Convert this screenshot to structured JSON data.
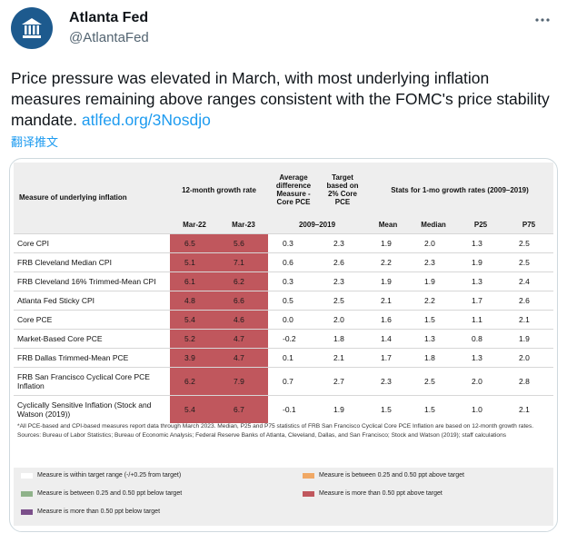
{
  "author": {
    "name": "Atlanta Fed",
    "handle": "@AtlantaFed"
  },
  "tweet": {
    "text": "Price pressure was elevated in March, with most underlying inflation measures remaining above ranges consistent with the FOMC's price stability mandate.",
    "link": "atlfed.org/3Nosdjo",
    "translate": "翻译推文"
  },
  "icons": {
    "avatar": "atlanta-fed-logo-icon",
    "more": "more-options-icon"
  },
  "table": {
    "headers": {
      "measure": "Measure of underlying inflation",
      "growth12": "12-month growth rate",
      "avg_diff": "Average difference Measure - Core PCE",
      "target": "Target based on 2% Core PCE",
      "stats": "Stats for 1-mo growth rates (2009–2019)"
    },
    "subheaders": {
      "mar22": "Mar-22",
      "mar23": "Mar-23",
      "period": "2009–2019",
      "mean": "Mean",
      "median": "Median",
      "p25": "P25",
      "p75": "P75"
    },
    "rows": [
      {
        "measure": "Core CPI",
        "mar22": "6.5",
        "mar23": "5.6",
        "avg_diff": "0.3",
        "target": "2.3",
        "mean": "1.9",
        "median": "2.0",
        "p25": "1.3",
        "p75": "2.5"
      },
      {
        "measure": "FRB Cleveland Median CPI",
        "mar22": "5.1",
        "mar23": "7.1",
        "avg_diff": "0.6",
        "target": "2.6",
        "mean": "2.2",
        "median": "2.3",
        "p25": "1.9",
        "p75": "2.5"
      },
      {
        "measure": "FRB Cleveland 16% Trimmed-Mean CPI",
        "mar22": "6.1",
        "mar23": "6.2",
        "avg_diff": "0.3",
        "target": "2.3",
        "mean": "1.9",
        "median": "1.9",
        "p25": "1.3",
        "p75": "2.4"
      },
      {
        "measure": "Atlanta Fed Sticky CPI",
        "mar22": "4.8",
        "mar23": "6.6",
        "avg_diff": "0.5",
        "target": "2.5",
        "mean": "2.1",
        "median": "2.2",
        "p25": "1.7",
        "p75": "2.6"
      },
      {
        "measure": "Core PCE",
        "mar22": "5.4",
        "mar23": "4.6",
        "avg_diff": "0.0",
        "target": "2.0",
        "mean": "1.6",
        "median": "1.5",
        "p25": "1.1",
        "p75": "2.1"
      },
      {
        "measure": "Market-Based Core PCE",
        "mar22": "5.2",
        "mar23": "4.7",
        "avg_diff": "-0.2",
        "target": "1.8",
        "mean": "1.4",
        "median": "1.3",
        "p25": "0.8",
        "p75": "1.9"
      },
      {
        "measure": "FRB Dallas Trimmed-Mean PCE",
        "mar22": "3.9",
        "mar23": "4.7",
        "avg_diff": "0.1",
        "target": "2.1",
        "mean": "1.7",
        "median": "1.8",
        "p25": "1.3",
        "p75": "2.0"
      },
      {
        "measure": "FRB San Francisco Cyclical Core PCE Inflation",
        "mar22": "6.2",
        "mar23": "7.9",
        "avg_diff": "0.7",
        "target": "2.7",
        "mean": "2.3",
        "median": "2.5",
        "p25": "2.0",
        "p75": "2.8"
      },
      {
        "measure": "Cyclically Sensitive Inflation (Stock and Watson (2019))",
        "mar22": "5.4",
        "mar23": "6.7",
        "avg_diff": "-0.1",
        "target": "1.9",
        "mean": "1.5",
        "median": "1.5",
        "p25": "1.0",
        "p75": "2.1"
      }
    ]
  },
  "footnote": {
    "line1": "*All PCE-based and CPI-based measures report data through March 2023. Median, P25 and P75 statistics of FRB San Francisco Cyclical Core PCE Inflation are based on 12-month growth rates.",
    "line2": "Sources: Bureau of Labor Statistics; Bureau of Economic Analysis; Federal Reserve Banks of Atlanta, Cleveland, Dallas, and San Francisco; Stock and Watson (2019); staff calculations"
  },
  "legend": [
    {
      "label": "Measure is within target range (-/+0.25 from target)",
      "color": "#ffffff"
    },
    {
      "label": "Measure is between 0.25 and 0.50 ppt above target",
      "color": "#f0a865"
    },
    {
      "label": "Measure is between 0.25 and 0.50 ppt below target",
      "color": "#8fb28a"
    },
    {
      "label": "Measure is more than 0.50 ppt above target",
      "color": "#c0575d"
    },
    {
      "label": "Measure is more than 0.50 ppt below target",
      "color": "#7b4f8a"
    }
  ],
  "colors": {
    "accent": "#1d9bf0",
    "above_high": "#c0575d",
    "header_bg": "#eeeeee"
  }
}
